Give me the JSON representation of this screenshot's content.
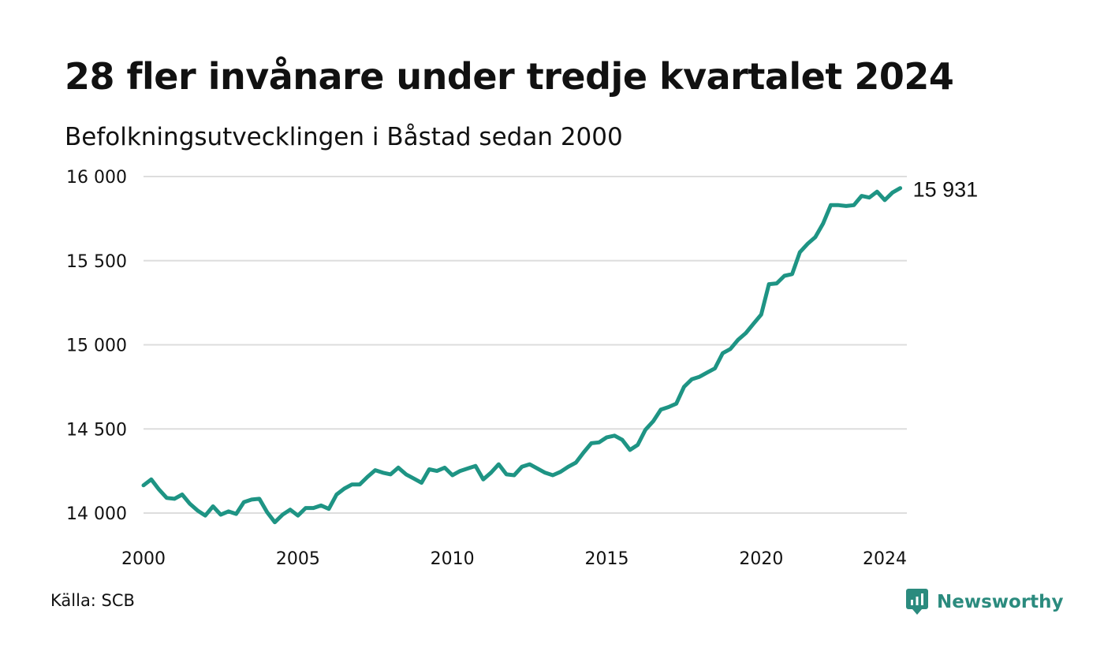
{
  "header": {
    "title": "28 fler invånare under tredje kvartalet 2024",
    "subtitle": "Befolkningsutvecklingen i Båstad sedan 2000"
  },
  "footer": {
    "source": "Källa: SCB",
    "brand": "Newsworthy",
    "brand_icon": "newsworthy-logo-icon"
  },
  "colors": {
    "line": "#1e9484",
    "grid": "#dddddd",
    "text": "#111111",
    "brand": "#2b8b7e"
  },
  "chart_data": {
    "type": "line",
    "title": "28 fler invånare under tredje kvartalet 2024",
    "subtitle": "Befolkningsutvecklingen i Båstad sedan 2000",
    "xlabel": "",
    "ylabel": "",
    "xlim": [
      2000,
      2024.5
    ],
    "ylim": [
      13900,
      16050
    ],
    "grid": true,
    "y_ticks": [
      {
        "value": 14000,
        "label": "14 000"
      },
      {
        "value": 14500,
        "label": "14 500"
      },
      {
        "value": 15000,
        "label": "15 000"
      },
      {
        "value": 15500,
        "label": "15 500"
      },
      {
        "value": 16000,
        "label": "16 000"
      }
    ],
    "x_ticks": [
      {
        "value": 2000,
        "label": "2000"
      },
      {
        "value": 2005,
        "label": "2005"
      },
      {
        "value": 2010,
        "label": "2010"
      },
      {
        "value": 2015,
        "label": "2015"
      },
      {
        "value": 2020,
        "label": "2020"
      },
      {
        "value": 2024,
        "label": "2024"
      }
    ],
    "end_label": "15 931",
    "series": [
      {
        "x": [
          2000.0,
          2000.25,
          2000.5,
          2000.75,
          2001.0,
          2001.25,
          2001.5,
          2001.75,
          2002.0,
          2002.25,
          2002.5,
          2002.75,
          2003.0,
          2003.25,
          2003.5,
          2003.75,
          2004.0,
          2004.25,
          2004.5,
          2004.75,
          2005.0,
          2005.25,
          2005.5,
          2005.75,
          2006.0,
          2006.25,
          2006.5,
          2006.75,
          2007.0,
          2007.25,
          2007.5,
          2007.75,
          2008.0,
          2008.25,
          2008.5,
          2008.75,
          2009.0,
          2009.25,
          2009.5,
          2009.75,
          2010.0,
          2010.25,
          2010.5,
          2010.75,
          2011.0,
          2011.25,
          2011.5,
          2011.75,
          2012.0,
          2012.25,
          2012.5,
          2012.75,
          2013.0,
          2013.25,
          2013.5,
          2013.75,
          2014.0,
          2014.25,
          2014.5,
          2014.75,
          2015.0,
          2015.25,
          2015.5,
          2015.75,
          2016.0,
          2016.25,
          2016.5,
          2016.75,
          2017.0,
          2017.25,
          2017.5,
          2017.75,
          2018.0,
          2018.25,
          2018.5,
          2018.75,
          2019.0,
          2019.25,
          2019.5,
          2019.75,
          2020.0,
          2020.25,
          2020.5,
          2020.75,
          2021.0,
          2021.25,
          2021.5,
          2021.75,
          2022.0,
          2022.25,
          2022.5,
          2022.75,
          2023.0,
          2023.25,
          2023.5,
          2023.75,
          2024.0,
          2024.25,
          2024.5
        ],
        "values": [
          14165,
          14200,
          14140,
          14090,
          14085,
          14110,
          14055,
          14015,
          13985,
          14040,
          13990,
          14010,
          13995,
          14065,
          14080,
          14085,
          14005,
          13945,
          13990,
          14020,
          13985,
          14030,
          14030,
          14045,
          14025,
          14110,
          14145,
          14170,
          14170,
          14215,
          14255,
          14240,
          14230,
          14270,
          14230,
          14205,
          14180,
          14260,
          14250,
          14270,
          14225,
          14250,
          14265,
          14280,
          14200,
          14240,
          14290,
          14230,
          14225,
          14275,
          14290,
          14265,
          14240,
          14225,
          14245,
          14275,
          14300,
          14360,
          14415,
          14420,
          14450,
          14460,
          14435,
          14375,
          14405,
          14495,
          14545,
          14615,
          14630,
          14650,
          14750,
          14795,
          14810,
          14835,
          14860,
          14950,
          14975,
          15030,
          15070,
          15125,
          15180,
          15360,
          15365,
          15410,
          15420,
          15550,
          15600,
          15640,
          15720,
          15830,
          15830,
          15825,
          15830,
          15885,
          15875,
          15910,
          15860,
          15905,
          15931
        ]
      }
    ]
  }
}
